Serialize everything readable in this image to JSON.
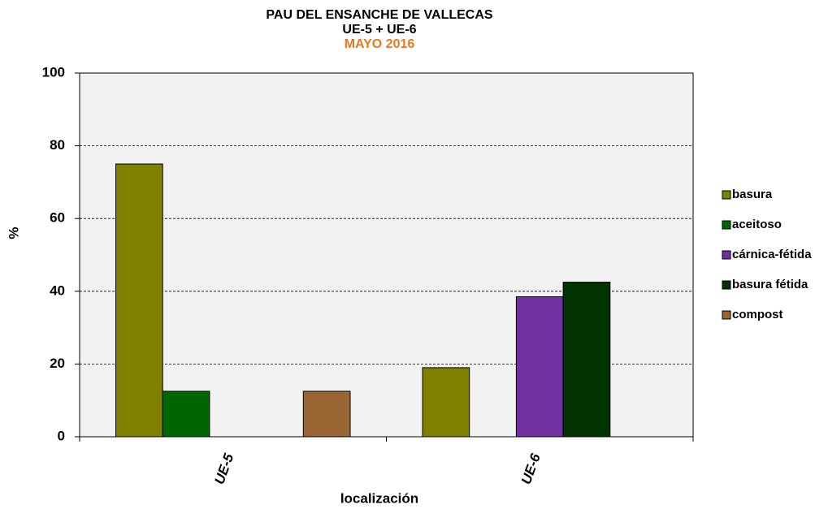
{
  "chart_data": {
    "type": "bar",
    "title": [
      "PAU DEL ENSANCHE DE VALLECAS",
      "UE-5 + UE-6",
      "MAYO 2016"
    ],
    "title_colors": [
      "#000000",
      "#000000",
      "#e8781e"
    ],
    "x_label": "localización",
    "y_label": "%",
    "categories": [
      "UE-5",
      "UE-6"
    ],
    "series": [
      {
        "name": "basura",
        "color": "#808000",
        "values": [
          75,
          19
        ]
      },
      {
        "name": "aceitoso",
        "color": "#006600",
        "values": [
          12.5,
          0
        ]
      },
      {
        "name": "cárnica-fétida",
        "color": "#7030a0",
        "values": [
          0,
          38.5
        ]
      },
      {
        "name": "basura fétida",
        "color": "#003300",
        "values": [
          0,
          42.5
        ]
      },
      {
        "name": "compost",
        "color": "#996633",
        "values": [
          12.5,
          0
        ]
      }
    ],
    "ylim": [
      0,
      100
    ],
    "yticks": [
      0,
      20,
      40,
      60,
      80,
      100
    ],
    "grid": true,
    "legend": "right"
  }
}
